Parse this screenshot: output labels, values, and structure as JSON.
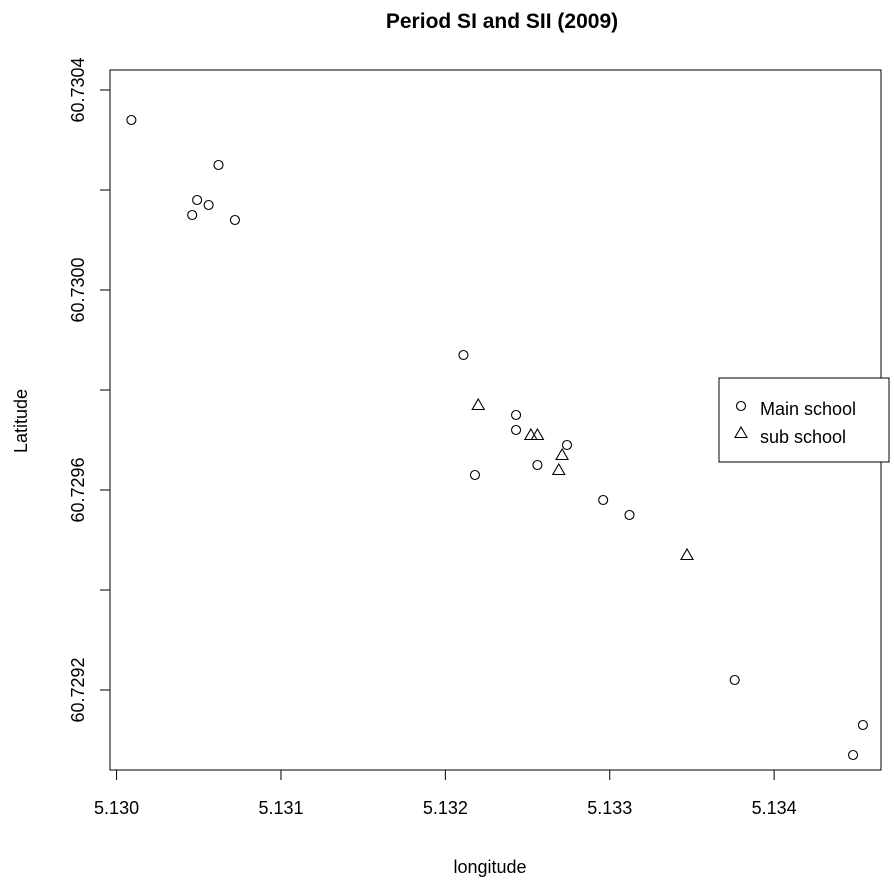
{
  "chart_data": {
    "type": "scatter",
    "title": "Period SI and SII (2009)",
    "xlabel": "longitude",
    "ylabel": "Latitude",
    "xlim": [
      5.12996,
      5.13465
    ],
    "ylim": [
      60.72904,
      60.73044
    ],
    "x_ticks": [
      "5.130",
      "5.131",
      "5.132",
      "5.133",
      "5.134"
    ],
    "y_ticks": [
      "60.7292",
      "60.7296",
      "60.7300",
      "60.7304"
    ],
    "grid": false,
    "legend_position": "right",
    "series": [
      {
        "name": "Main school",
        "marker": "circle",
        "color": "#000000",
        "points": [
          [
            5.13009,
            60.73034
          ],
          [
            5.13062,
            60.73025
          ],
          [
            5.13049,
            60.73018
          ],
          [
            5.13056,
            60.73017
          ],
          [
            5.13046,
            60.73015
          ],
          [
            5.13072,
            60.73014
          ],
          [
            5.13211,
            60.72987
          ],
          [
            5.13243,
            60.72975
          ],
          [
            5.13243,
            60.72972
          ],
          [
            5.13274,
            60.72969
          ],
          [
            5.13256,
            60.72965
          ],
          [
            5.13218,
            60.72963
          ],
          [
            5.13296,
            60.72958
          ],
          [
            5.13312,
            60.72955
          ],
          [
            5.13376,
            60.72922
          ],
          [
            5.13454,
            60.72913
          ],
          [
            5.13448,
            60.72907
          ]
        ]
      },
      {
        "name": "sub school",
        "marker": "triangle",
        "color": "#000000",
        "points": [
          [
            5.1322,
            60.72977
          ],
          [
            5.13252,
            60.72971
          ],
          [
            5.13256,
            60.72971
          ],
          [
            5.13271,
            60.72967
          ],
          [
            5.13269,
            60.72964
          ],
          [
            5.13347,
            60.72947
          ]
        ]
      }
    ]
  }
}
